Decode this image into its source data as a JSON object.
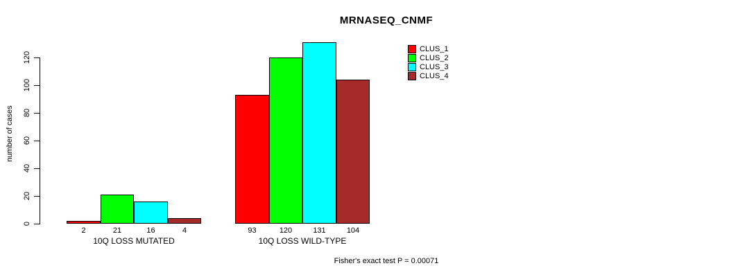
{
  "chart_data": {
    "type": "bar",
    "title": "MRNASEQ_CNMF",
    "ylabel": "number of cases",
    "xlabel": "",
    "categories": [
      "10Q LOSS MUTATED",
      "10Q LOSS WILD-TYPE"
    ],
    "series": [
      {
        "name": "CLUS_1",
        "color": "#ff0000",
        "values": [
          2,
          93
        ]
      },
      {
        "name": "CLUS_2",
        "color": "#00ff00",
        "values": [
          21,
          120
        ]
      },
      {
        "name": "CLUS_3",
        "color": "#00ffff",
        "values": [
          16,
          131
        ]
      },
      {
        "name": "CLUS_4",
        "color": "#a52a2a",
        "values": [
          4,
          104
        ]
      }
    ],
    "yticks": [
      0,
      20,
      40,
      60,
      80,
      100,
      120
    ],
    "ylim": [
      0,
      131
    ],
    "grid": false,
    "legend_position": "topright",
    "bar_value_labels": [
      [
        2,
        21,
        16,
        4
      ],
      [
        93,
        120,
        131,
        104
      ]
    ],
    "annotation": "Fisher's exact test P = 0.00071"
  }
}
